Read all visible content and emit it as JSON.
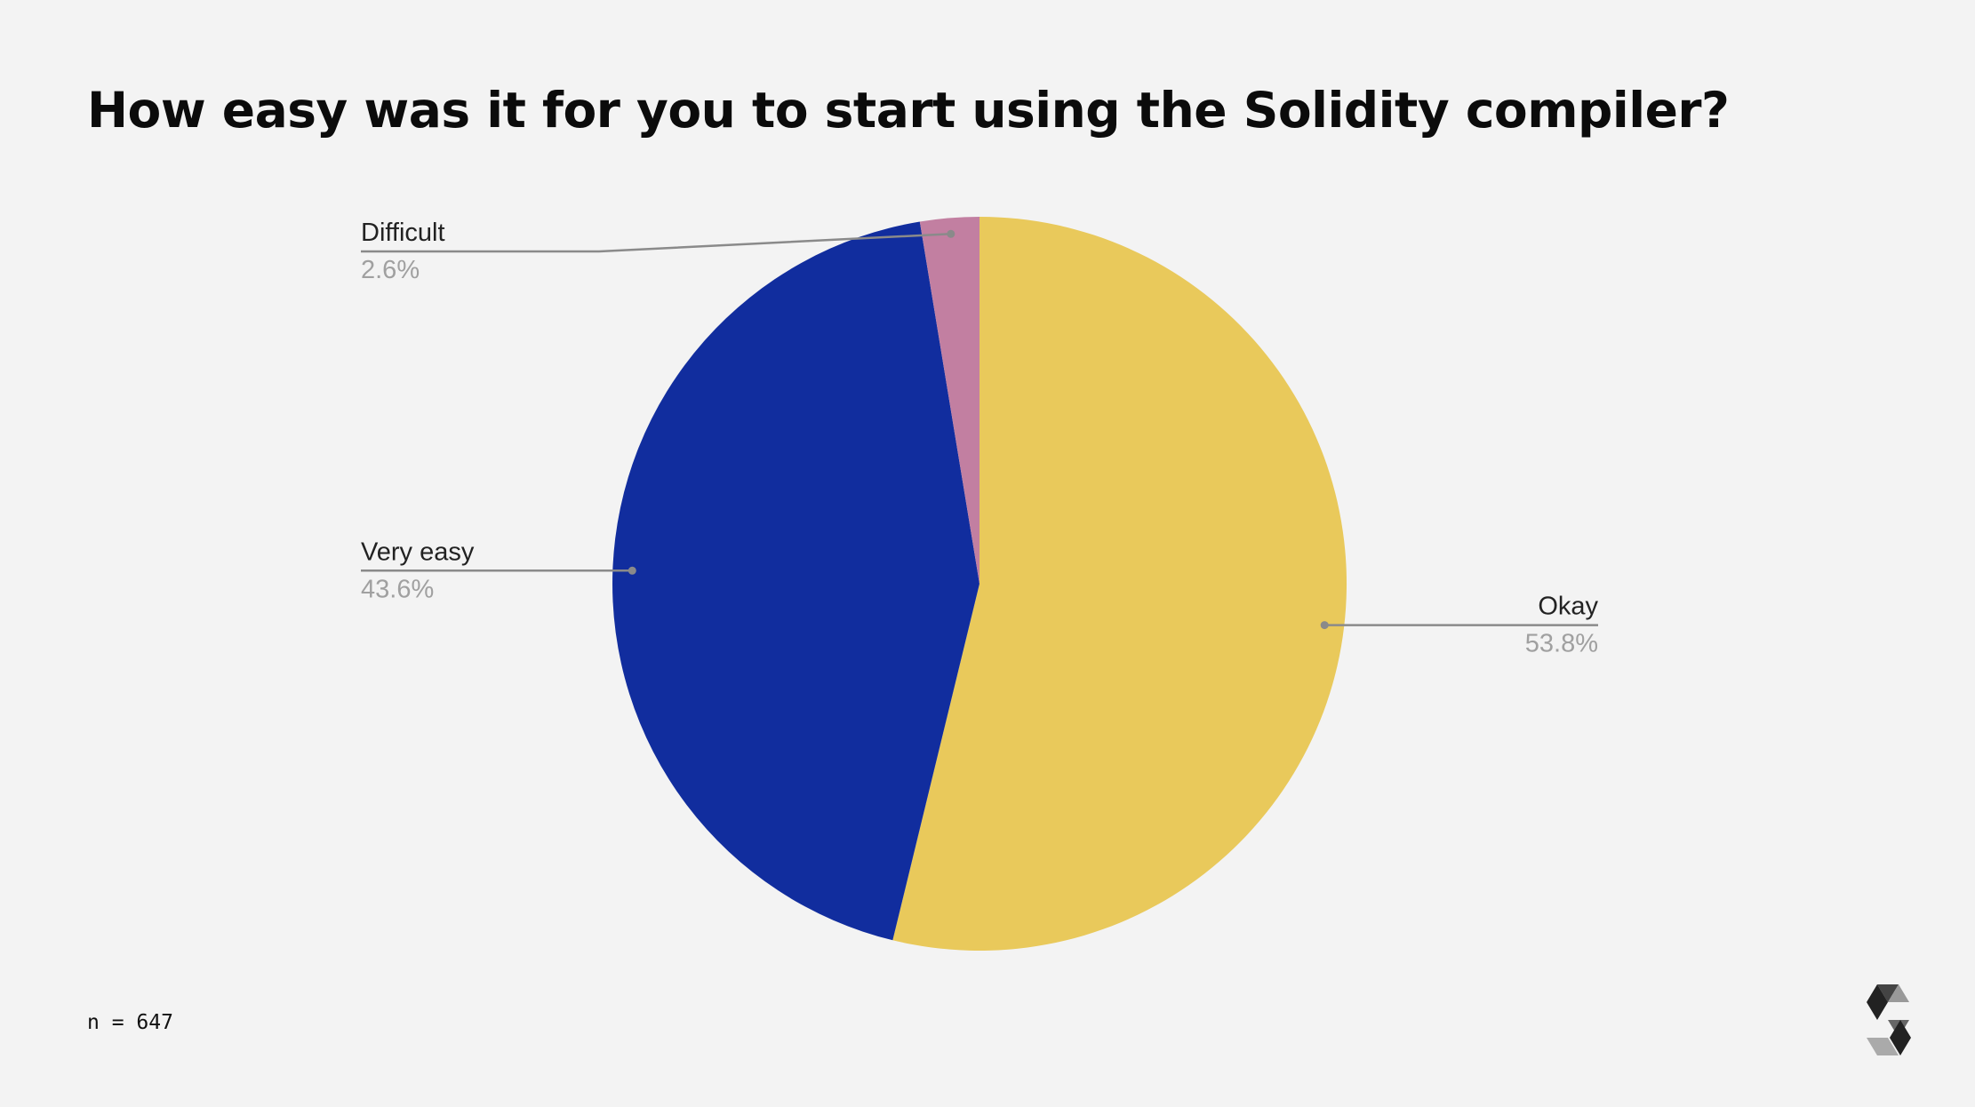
{
  "slide": {
    "title": "How easy was it for you to start using the Solidity compiler?",
    "footnote": "n = 647",
    "logo_icon": "solidity-logo-icon"
  },
  "chart_data": {
    "type": "pie",
    "title": "How easy was it for you to start using the Solidity compiler?",
    "start_angle_deg": 0,
    "direction": "clockwise",
    "legend": "none",
    "slices": [
      {
        "label": "Okay",
        "value": 53.8,
        "value_label": "53.8%",
        "color": "#e9c95b",
        "label_side": "right"
      },
      {
        "label": "Very easy",
        "value": 43.6,
        "value_label": "43.6%",
        "color": "#112d9e",
        "label_side": "left"
      },
      {
        "label": "Difficult",
        "value": 2.6,
        "value_label": "2.6%",
        "color": "#c27fa1",
        "label_side": "left"
      }
    ],
    "colors": {
      "leader_line": "#8a8a8a",
      "label_text": "#222222",
      "value_text": "#a0a0a0"
    }
  }
}
